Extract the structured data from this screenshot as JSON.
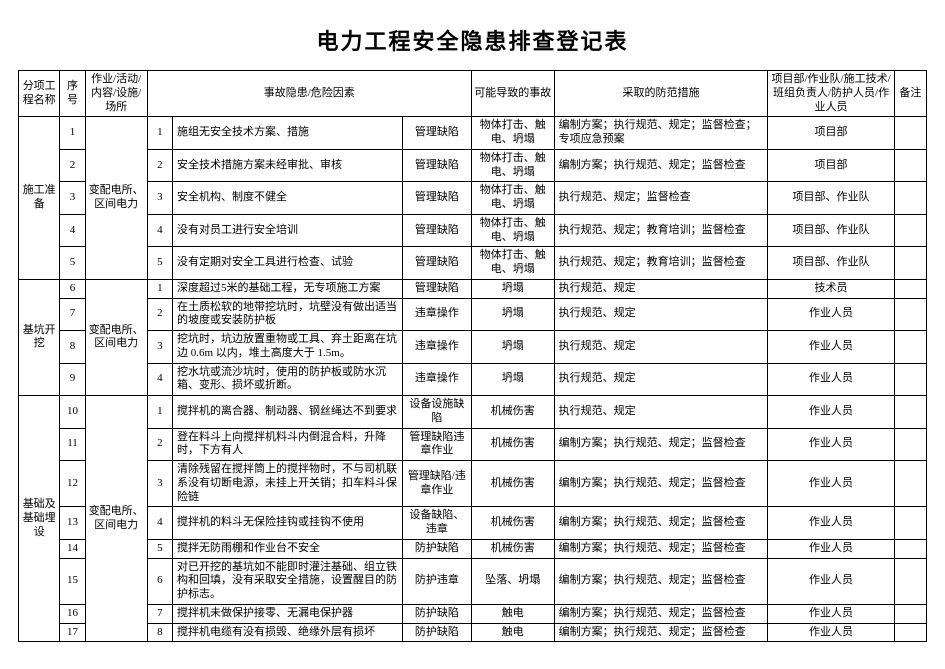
{
  "title": "电力工程安全隐患排查登记表",
  "headers": {
    "category": "分项工程名称",
    "seq": "序号",
    "activity": "作业/活动/内容/设施/场所",
    "hazard": "事故隐患/危险因素",
    "accident": "可能导致的事故",
    "measure": "采取的防范措施",
    "responsible": "项目部/作业队/施工技术/班组负责人/防护人员/作业人员",
    "note": "备注"
  },
  "groups": [
    {
      "category": "施工准备",
      "activity": "变配电所、区间电力",
      "rows": [
        {
          "seq": "1",
          "hn": "1",
          "hazard": "施组无安全技术方案、措施",
          "type": "管理缺陷",
          "accident": "物体打击、触电、坍塌",
          "measure": "编制方案；执行规范、规定；监督检查；专项应急预案",
          "resp": "项目部",
          "note": ""
        },
        {
          "seq": "2",
          "hn": "2",
          "hazard": "安全技术措施方案未经审批、审核",
          "type": "管理缺陷",
          "accident": "物体打击、触电、坍塌",
          "measure": "编制方案；执行规范、规定；监督检查",
          "resp": "项目部",
          "note": ""
        },
        {
          "seq": "3",
          "hn": "3",
          "hazard": "安全机构、制度不健全",
          "type": "管理缺陷",
          "accident": "物体打击、触电、坍塌",
          "measure": "执行规范、规定；监督检查",
          "resp": "项目部、作业队",
          "note": ""
        },
        {
          "seq": "4",
          "hn": "4",
          "hazard": "没有对员工进行安全培训",
          "type": "管理缺陷",
          "accident": "物体打击、触电、坍塌",
          "measure": "执行规范、规定；教育培训；监督检查",
          "resp": "项目部、作业队",
          "note": ""
        },
        {
          "seq": "5",
          "hn": "5",
          "hazard": "没有定期对安全工具进行检查、试验",
          "type": "管理缺陷",
          "accident": "物体打击、触电、坍塌",
          "measure": "执行规范、规定；教育培训；监督检查",
          "resp": "项目部、作业队",
          "note": ""
        }
      ]
    },
    {
      "category": "基坑开挖",
      "activity": "变配电所、区间电力",
      "rows": [
        {
          "seq": "6",
          "hn": "1",
          "hazard": "深度超过5米的基础工程，无专项施工方案",
          "type": "管理缺陷",
          "accident": "坍塌",
          "measure": "执行规范、规定",
          "resp": "技术员",
          "note": ""
        },
        {
          "seq": "7",
          "hn": "2",
          "hazard": "在土质松软的地带挖坑时，坑壁没有做出适当的坡度或安装防护板",
          "type": "违章操作",
          "accident": "坍塌",
          "measure": "执行规范、规定",
          "resp": "作业人员",
          "note": ""
        },
        {
          "seq": "8",
          "hn": "3",
          "hazard": "挖坑时，坑边放置重物或工具、弃土距离在坑边 0.6m 以内，堆土高度大于 1.5m。",
          "type": "违章操作",
          "accident": "坍塌",
          "measure": "执行规范、规定",
          "resp": "作业人员",
          "note": ""
        },
        {
          "seq": "9",
          "hn": "4",
          "hazard": "挖水坑或流沙坑时，使用的防护板或防水沉箱、变形、损坏或折断。",
          "type": "违章操作",
          "accident": "坍塌",
          "measure": "执行规范、规定",
          "resp": "作业人员",
          "note": ""
        }
      ]
    },
    {
      "category": "基础及基础埋设",
      "activity": "变配电所、区间电力",
      "rows": [
        {
          "seq": "10",
          "hn": "1",
          "hazard": "搅拌机的离合器、制动器、钢丝绳达不到要求",
          "type": "设备设施缺陷",
          "accident": "机械伤害",
          "measure": "执行规范、规定",
          "resp": "作业人员",
          "note": ""
        },
        {
          "seq": "11",
          "hn": "2",
          "hazard": "登在料斗上向搅拌机料斗内倒混合料，升降时，下方有人",
          "type": "管理缺陷违章作业",
          "accident": "机械伤害",
          "measure": "编制方案；执行规范、规定；监督检查",
          "resp": "作业人员",
          "note": ""
        },
        {
          "seq": "12",
          "hn": "3",
          "hazard": "清除残留在搅拌筒上的搅拌物时，不与司机联系没有切断电源，未挂上开关销；扣车料斗保险链",
          "type": "管理缺陷/违章作业",
          "accident": "机械伤害",
          "measure": "编制方案；执行规范、规定；监督检查",
          "resp": "作业人员",
          "note": ""
        },
        {
          "seq": "13",
          "hn": "4",
          "hazard": "搅拌机的料斗无保险挂钩或挂钩不使用",
          "type": "设备缺陷、违章",
          "accident": "机械伤害",
          "measure": "编制方案；执行规范、规定；监督检查",
          "resp": "作业人员",
          "note": ""
        },
        {
          "seq": "14",
          "hn": "5",
          "hazard": "搅拌无防雨棚和作业台不安全",
          "type": "防护缺陷",
          "accident": "机械伤害",
          "measure": "编制方案；执行规范、规定；监督检查",
          "resp": "作业人员",
          "note": ""
        },
        {
          "seq": "15",
          "hn": "6",
          "hazard": "对已开挖的基坑如不能即时灌注基础、组立铁构和回填，没有采取安全措施，设置醒目的防护标志。",
          "type": "防护违章",
          "accident": "坠落、坍塌",
          "measure": "编制方案；执行规范、规定；监督检查",
          "resp": "作业人员",
          "note": ""
        },
        {
          "seq": "16",
          "hn": "7",
          "hazard": "搅拌机未做保护接零、无漏电保护器",
          "type": "防护缺陷",
          "accident": "触电",
          "measure": "编制方案；执行规范、规定；监督检查",
          "resp": "作业人员",
          "note": ""
        },
        {
          "seq": "17",
          "hn": "8",
          "hazard": "搅拌机电缆有没有损毁、绝缘外层有损坏",
          "type": "防护缺陷",
          "accident": "触电",
          "measure": "编制方案；执行规范、规定；监督检查",
          "resp": "作业人员",
          "note": ""
        }
      ]
    }
  ]
}
